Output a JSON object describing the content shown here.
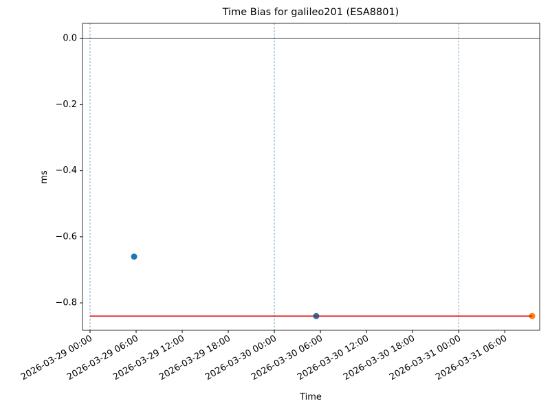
{
  "chart_data": {
    "type": "scatter",
    "title": "Time Bias for galileo201 (ESA8801)",
    "xlabel": "Time",
    "ylabel": "ms",
    "xlim": [
      "2026-03-28 23:01",
      "2026-03-31 10:33"
    ],
    "ylim": [
      -0.883,
      0.046
    ],
    "xticks": [
      "2026-03-29 00:00",
      "2026-03-29 06:00",
      "2026-03-29 12:00",
      "2026-03-29 18:00",
      "2026-03-30 00:00",
      "2026-03-30 06:00",
      "2026-03-30 12:00",
      "2026-03-30 18:00",
      "2026-03-31 00:00",
      "2026-03-31 06:00"
    ],
    "yticks": [
      {
        "value": 0,
        "label": "0.0"
      },
      {
        "value": -0.2,
        "label": "−0.2"
      },
      {
        "value": -0.4,
        "label": "−0.4"
      },
      {
        "value": -0.6,
        "label": "−0.6"
      },
      {
        "value": -0.8,
        "label": "−0.8"
      }
    ],
    "vlines": [
      "2026-03-29 00:00",
      "2026-03-30 00:00",
      "2026-03-31 00:00"
    ],
    "hlines": [
      0
    ],
    "series": [
      {
        "color": "#1f77b4",
        "mode": "markers",
        "x": [
          "2026-03-29 05:44",
          "2026-03-30 05:27"
        ],
        "values": [
          -0.66,
          -0.84
        ]
      },
      {
        "color": "#ff7f0e",
        "mode": "markers",
        "x": [
          "2026-03-31 09:34"
        ],
        "values": [
          -0.84
        ]
      },
      {
        "color": "#e00000",
        "mode": "line",
        "x": [
          "2026-03-29 00:00",
          "2026-03-31 09:34"
        ],
        "values": [
          -0.84,
          -0.84
        ]
      }
    ]
  }
}
